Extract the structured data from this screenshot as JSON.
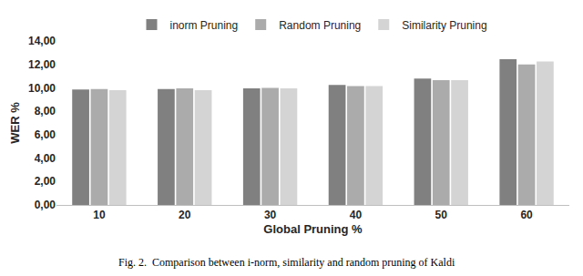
{
  "chart_data": {
    "type": "bar",
    "caption": "Fig. 2.  Comparison between i-norm, similarity and random pruning of Kaldi",
    "x_label": "Global Pruning %",
    "y_label": "WER %",
    "categories": [
      "10",
      "20",
      "30",
      "40",
      "50",
      "60"
    ],
    "series": [
      {
        "name": "inorm Pruning",
        "color": "#808080",
        "values": [
          9.85,
          9.9,
          9.95,
          10.25,
          10.8,
          12.45
        ]
      },
      {
        "name": "Random Pruning",
        "color": "#ababab",
        "values": [
          9.9,
          9.95,
          10.0,
          10.15,
          10.65,
          12.0
        ]
      },
      {
        "name": "Similarity Pruning",
        "color": "#d4d4d4",
        "values": [
          9.8,
          9.8,
          9.95,
          10.15,
          10.65,
          12.25
        ]
      }
    ],
    "ylim": [
      0,
      14
    ],
    "yticks": [
      {
        "value": 0,
        "label": "0,00"
      },
      {
        "value": 2,
        "label": "2,00"
      },
      {
        "value": 4,
        "label": "4,00"
      },
      {
        "value": 6,
        "label": "6,00"
      },
      {
        "value": 8,
        "label": "8,00"
      },
      {
        "value": 10,
        "label": "10,00"
      },
      {
        "value": 12,
        "label": "12,00"
      },
      {
        "value": 14,
        "label": "14,00"
      }
    ],
    "grid": false,
    "legend": "top"
  }
}
